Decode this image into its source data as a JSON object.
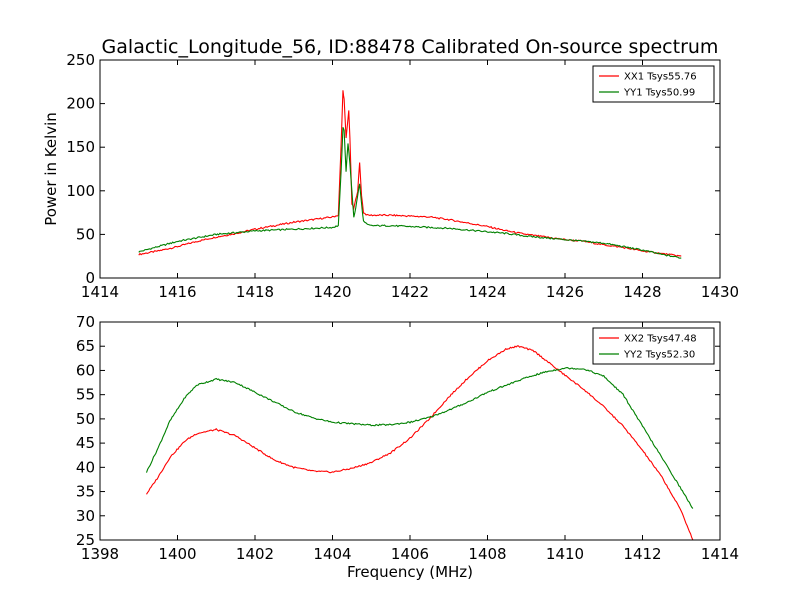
{
  "figure": {
    "title": "Galactic_Longitude_56, ID:88478 Calibrated On-source spectrum"
  },
  "chart_data": [
    {
      "type": "line",
      "title": "Galactic_Longitude_56, ID:88478 Calibrated On-source spectrum",
      "xlabel": "",
      "ylabel": "Power in Kelvin",
      "xlim": [
        1414,
        1430
      ],
      "ylim": [
        0,
        250
      ],
      "xticks": [
        "1414",
        "1416",
        "1418",
        "1420",
        "1422",
        "1424",
        "1426",
        "1428",
        "1430"
      ],
      "yticks": [
        "0",
        "50",
        "100",
        "150",
        "200",
        "250"
      ],
      "grid": false,
      "legend_position": "top-right",
      "series": [
        {
          "name": "XX1 Tsys55.76",
          "color": "#ff0000",
          "x": [
            1415.0,
            1415.5,
            1416.0,
            1416.5,
            1417.0,
            1417.5,
            1418.0,
            1418.5,
            1419.0,
            1419.5,
            1420.0,
            1420.15,
            1420.22,
            1420.27,
            1420.3,
            1420.35,
            1420.42,
            1420.45,
            1420.5,
            1420.55,
            1420.6,
            1420.65,
            1420.7,
            1420.75,
            1420.8,
            1420.9,
            1421.0,
            1421.5,
            1422.0,
            1422.5,
            1423.0,
            1423.5,
            1424.0,
            1424.5,
            1425.0,
            1425.5,
            1426.0,
            1426.5,
            1427.0,
            1427.5,
            1428.0,
            1428.5,
            1429.0
          ],
          "y": [
            27,
            31,
            36,
            42,
            47,
            51,
            56,
            60,
            64,
            67,
            70,
            72,
            150,
            215,
            205,
            160,
            192,
            160,
            85,
            80,
            90,
            100,
            132,
            95,
            75,
            72,
            72,
            72,
            71,
            70,
            67,
            63,
            59,
            54,
            50,
            47,
            44,
            42,
            38,
            35,
            31,
            28,
            25
          ]
        },
        {
          "name": "YY1 Tsys50.99",
          "color": "#008000",
          "x": [
            1415.0,
            1415.5,
            1416.0,
            1416.5,
            1417.0,
            1417.5,
            1418.0,
            1418.5,
            1419.0,
            1419.5,
            1420.0,
            1420.15,
            1420.22,
            1420.27,
            1420.3,
            1420.35,
            1420.4,
            1420.45,
            1420.5,
            1420.55,
            1420.6,
            1420.65,
            1420.7,
            1420.75,
            1420.8,
            1420.9,
            1421.0,
            1421.5,
            1422.0,
            1422.5,
            1423.0,
            1423.5,
            1424.0,
            1424.5,
            1425.0,
            1425.5,
            1426.0,
            1426.5,
            1427.0,
            1427.5,
            1428.0,
            1428.5,
            1429.0
          ],
          "y": [
            30,
            36,
            42,
            46,
            50,
            52,
            54,
            55,
            56,
            57,
            58,
            60,
            120,
            172,
            170,
            122,
            155,
            130,
            100,
            70,
            80,
            95,
            108,
            85,
            65,
            61,
            60,
            60,
            59,
            58,
            57,
            55,
            53,
            51,
            48,
            46,
            44,
            42,
            40,
            36,
            32,
            27,
            23
          ]
        }
      ]
    },
    {
      "type": "line",
      "title": "",
      "xlabel": "Frequency (MHz)",
      "ylabel": "",
      "xlim": [
        1398,
        1414
      ],
      "ylim": [
        25,
        70
      ],
      "xticks": [
        "1398",
        "1400",
        "1402",
        "1404",
        "1406",
        "1408",
        "1410",
        "1412",
        "1414"
      ],
      "yticks": [
        "25",
        "30",
        "35",
        "40",
        "45",
        "50",
        "55",
        "60",
        "65",
        "70"
      ],
      "grid": false,
      "legend_position": "top-right",
      "series": [
        {
          "name": "XX2 Tsys47.48",
          "color": "#ff0000",
          "x": [
            1399.2,
            1399.5,
            1399.8,
            1400.2,
            1400.5,
            1401.0,
            1401.5,
            1402.0,
            1402.5,
            1403.0,
            1403.5,
            1404.0,
            1404.5,
            1405.0,
            1405.5,
            1406.0,
            1406.5,
            1407.0,
            1407.5,
            1408.0,
            1408.5,
            1408.8,
            1409.2,
            1409.6,
            1410.0,
            1410.5,
            1411.0,
            1411.5,
            1412.0,
            1412.5,
            1413.0,
            1413.3
          ],
          "y": [
            34.5,
            38,
            42,
            45.5,
            47,
            47.8,
            46.5,
            44,
            41.5,
            40,
            39.2,
            39,
            39.8,
            41,
            43,
            46,
            50,
            54.5,
            58.5,
            62,
            64.5,
            65,
            64,
            61.5,
            59,
            56,
            52.5,
            48.5,
            43.5,
            38,
            31,
            25
          ]
        },
        {
          "name": "YY2 Tsys52.30",
          "color": "#008000",
          "x": [
            1399.2,
            1399.5,
            1399.8,
            1400.2,
            1400.5,
            1401.0,
            1401.5,
            1402.0,
            1402.5,
            1403.0,
            1403.5,
            1404.0,
            1404.5,
            1405.0,
            1405.5,
            1406.0,
            1406.5,
            1407.0,
            1407.5,
            1408.0,
            1408.5,
            1409.0,
            1409.5,
            1410.0,
            1410.5,
            1411.0,
            1411.5,
            1412.0,
            1412.5,
            1413.0,
            1413.3
          ],
          "y": [
            39,
            44,
            49.5,
            54.5,
            57,
            58.2,
            57.5,
            55.5,
            53.5,
            51.5,
            50.2,
            49.3,
            49,
            48.7,
            48.8,
            49.3,
            50.3,
            51.8,
            53.5,
            55.5,
            57,
            58.5,
            59.7,
            60.5,
            60.3,
            58.8,
            55,
            48.5,
            42,
            35.5,
            31.5
          ]
        }
      ]
    }
  ]
}
